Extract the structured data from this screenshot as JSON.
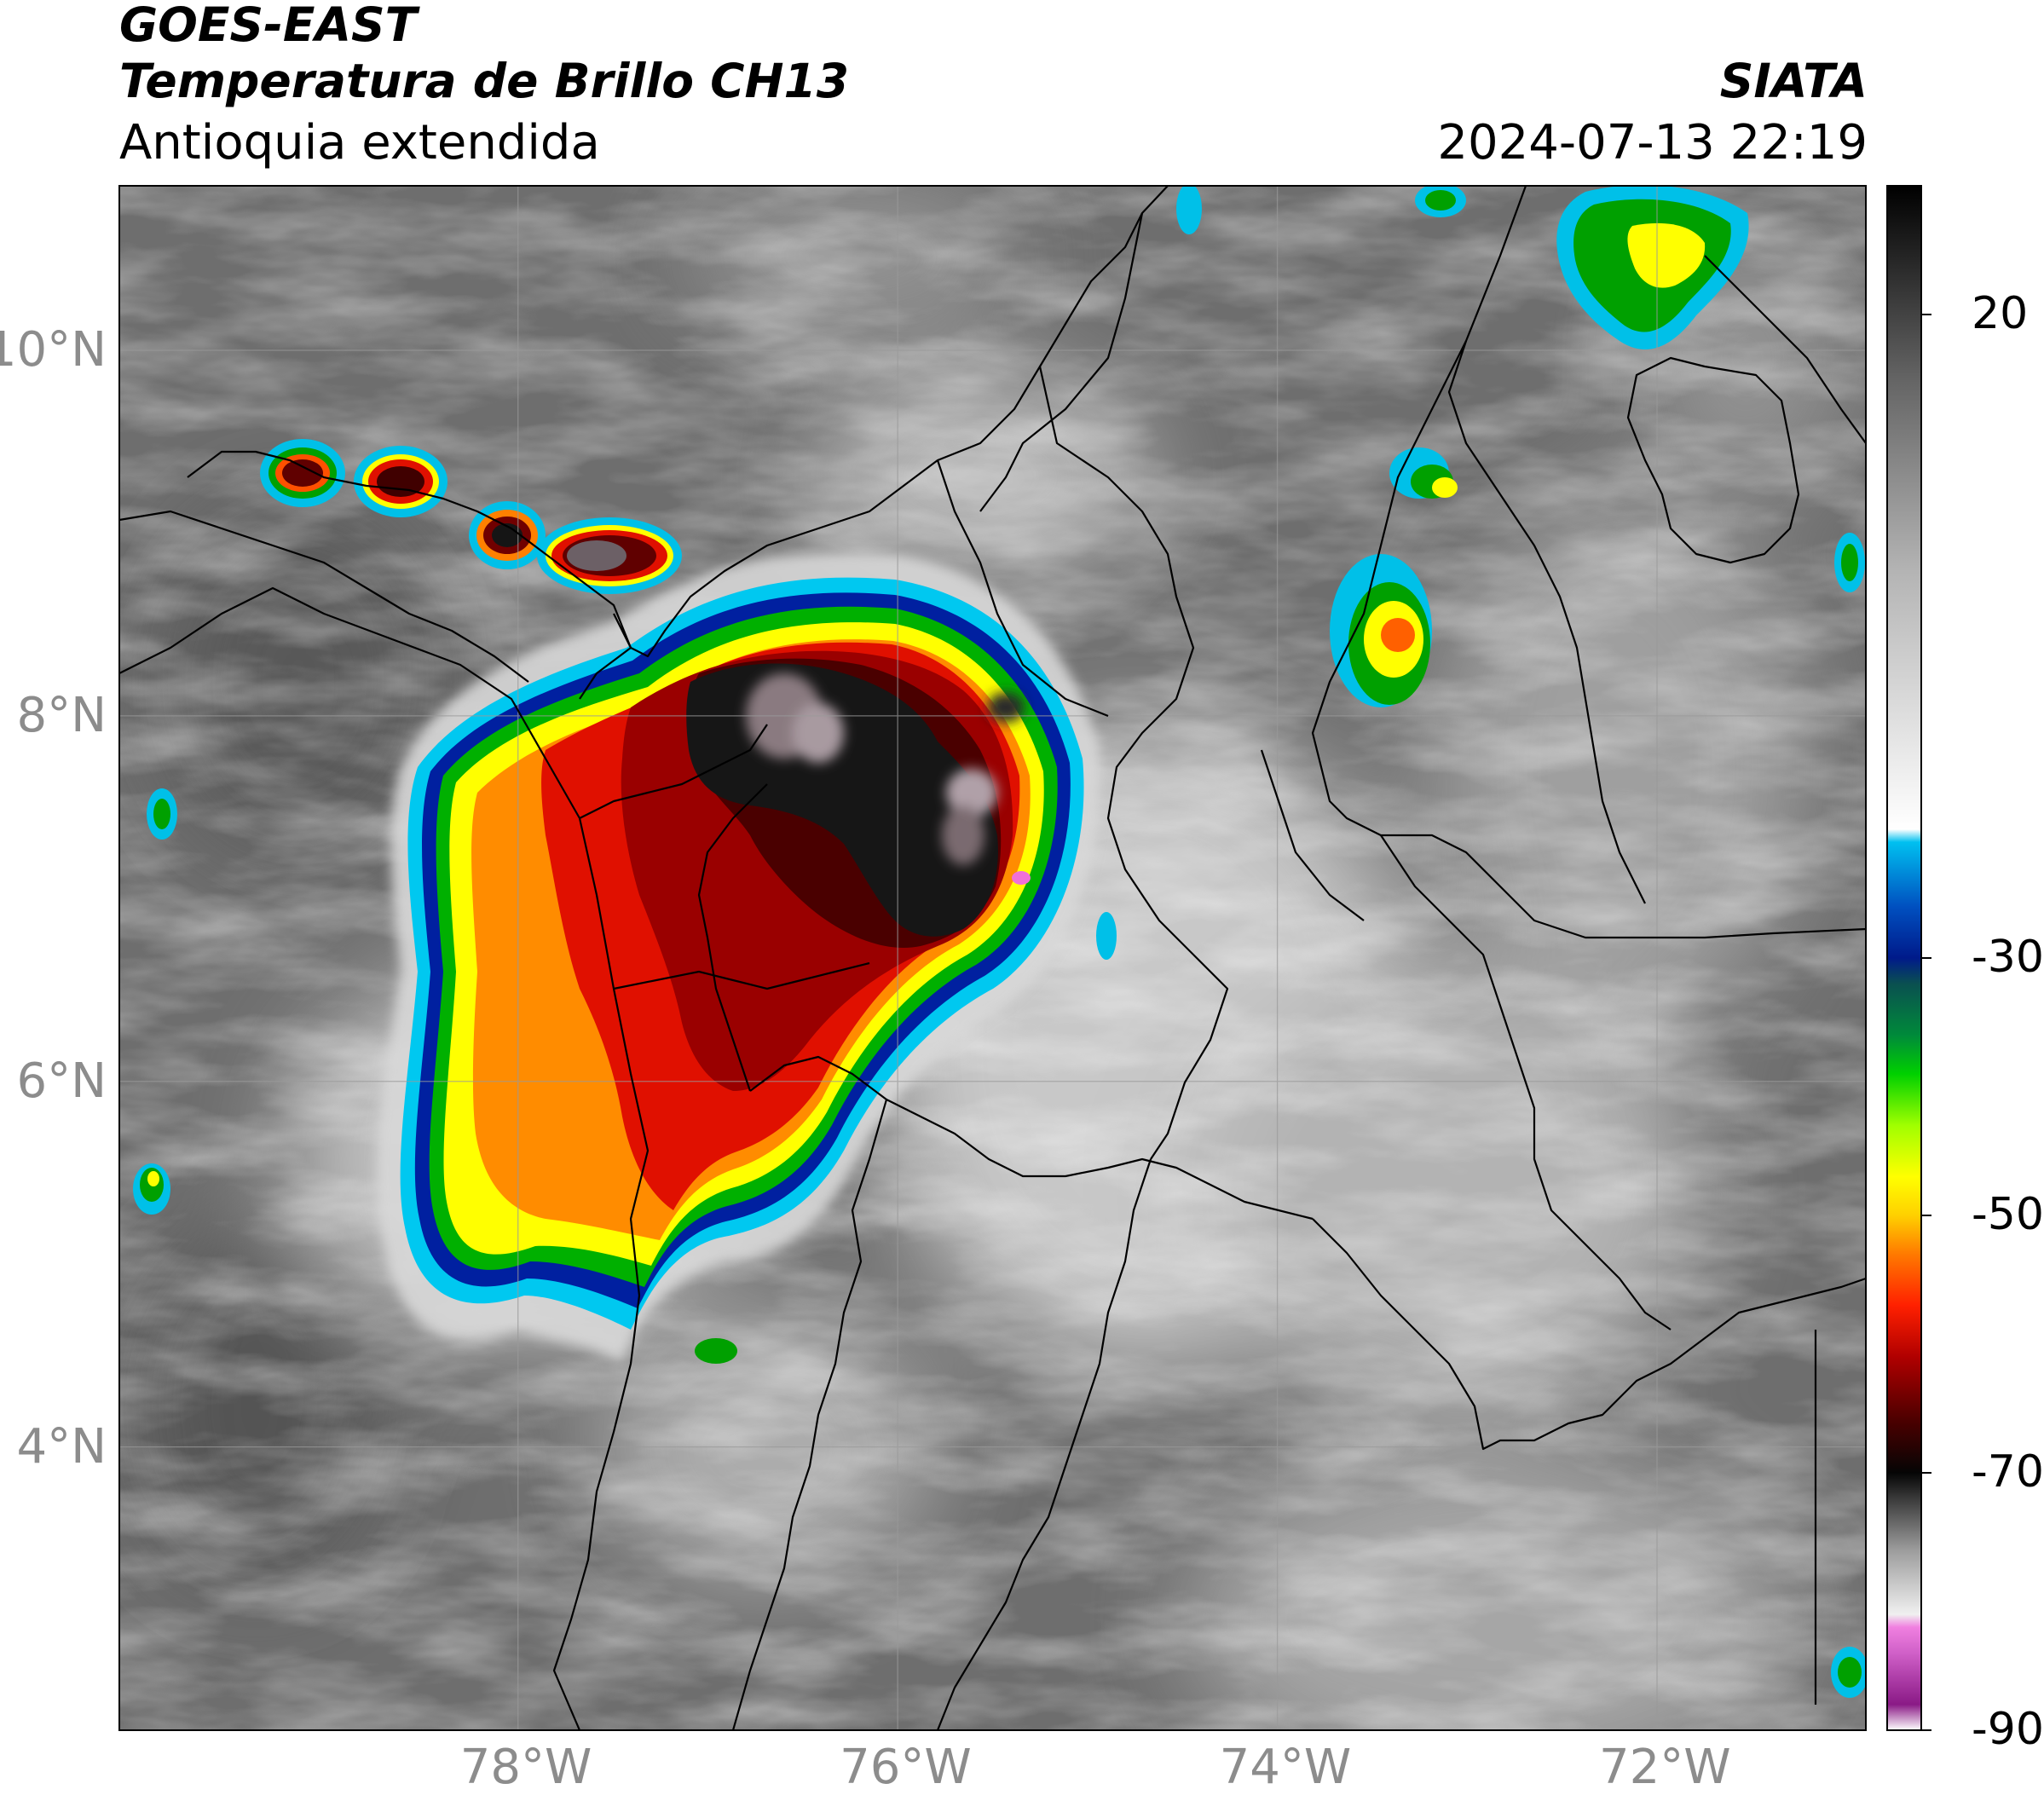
{
  "header": {
    "satellite": "GOES-EAST",
    "product": "Temperatura de Brillo CH13",
    "region": "Antioquia extendida",
    "brand": "SIATA",
    "datetime": "2024-07-13 22:19"
  },
  "map": {
    "lon_range": [
      -80.1,
      -70.9
    ],
    "lat_range": [
      2.45,
      10.9
    ],
    "lat_ticks": [
      {
        "value": 10,
        "label": "10°N"
      },
      {
        "value": 8,
        "label": "8°N"
      },
      {
        "value": 6,
        "label": "6°N"
      },
      {
        "value": 4,
        "label": "4°N"
      }
    ],
    "lon_ticks": [
      {
        "value": -78,
        "label": "78°W"
      },
      {
        "value": -76,
        "label": "76°W"
      },
      {
        "value": -74,
        "label": "74°W"
      },
      {
        "value": -72,
        "label": "72°W"
      }
    ],
    "gridlines": true,
    "background_color": "#6e6e6e",
    "features": [
      "country borders",
      "department boundaries",
      "coastline"
    ]
  },
  "colorbar": {
    "orientation": "vertical",
    "range": [
      -90,
      30
    ],
    "ticks": [
      {
        "value": 20,
        "label": "20"
      },
      {
        "value": -30,
        "label": "-30"
      },
      {
        "value": -50,
        "label": "-50"
      },
      {
        "value": -70,
        "label": "-70"
      },
      {
        "value": -90,
        "label": "-90"
      }
    ],
    "stops": [
      {
        "value": -90,
        "color": "#ffffff"
      },
      {
        "value": -88,
        "color": "#8a1a86"
      },
      {
        "value": -84,
        "color": "#d060c8"
      },
      {
        "value": -82,
        "color": "#f080e0"
      },
      {
        "value": -81,
        "color": "#f0f0f0"
      },
      {
        "value": -76,
        "color": "#9c9c9c"
      },
      {
        "value": -72,
        "color": "#3a3a3a"
      },
      {
        "value": -70,
        "color": "#050505"
      },
      {
        "value": -66,
        "color": "#4a0000"
      },
      {
        "value": -61,
        "color": "#b00000"
      },
      {
        "value": -57,
        "color": "#ff2000"
      },
      {
        "value": -53,
        "color": "#ff7a00"
      },
      {
        "value": -50,
        "color": "#ffd000"
      },
      {
        "value": -47,
        "color": "#ffff00"
      },
      {
        "value": -43,
        "color": "#a0ff00"
      },
      {
        "value": -39,
        "color": "#00d000"
      },
      {
        "value": -36,
        "color": "#008a3a"
      },
      {
        "value": -32,
        "color": "#0a5050"
      },
      {
        "value": -30,
        "color": "#001a8a"
      },
      {
        "value": -26,
        "color": "#0050c0"
      },
      {
        "value": -21,
        "color": "#00c0f0"
      },
      {
        "value": -20,
        "color": "#ffffff"
      },
      {
        "value": 0,
        "color": "#b4b4b4"
      },
      {
        "value": 15,
        "color": "#646464"
      },
      {
        "value": 30,
        "color": "#000000"
      }
    ]
  }
}
